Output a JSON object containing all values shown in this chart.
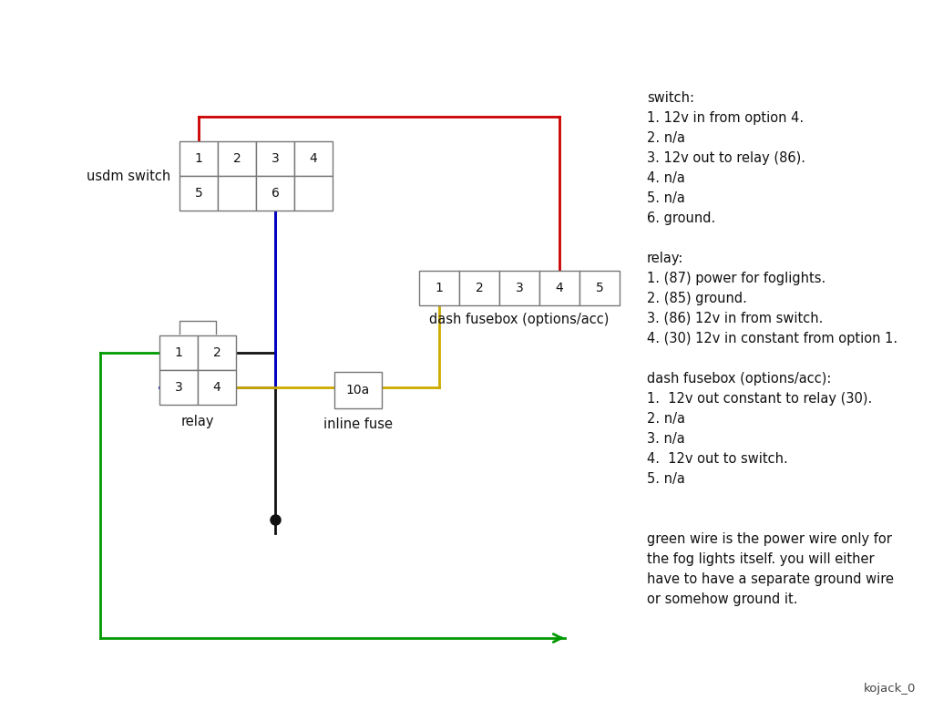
{
  "bg_color": "#ffffff",
  "fig_width": 10.24,
  "fig_height": 7.91,
  "notes": [
    "switch:",
    "1. 12v in from option 4.",
    "2. n/a",
    "3. 12v out to relay (86).",
    "4. n/a",
    "5. n/a",
    "6. ground.",
    "",
    "relay:",
    "1. (87) power for foglights.",
    "2. (85) ground.",
    "3. (86) 12v in from switch.",
    "4. (30) 12v in constant from option 1.",
    "",
    "dash fusebox (options/acc):",
    "1.  12v out constant to relay (30).",
    "2. n/a",
    "3. n/a",
    "4.  12v out to switch.",
    "5. n/a",
    "",
    "",
    "green wire is the power wire only for",
    "the fog lights itself. you will either",
    "have to have a separate ground wire",
    "or somehow ground it."
  ],
  "footer": "kojack_0",
  "wire_red": "#cc0000",
  "wire_blue": "#0000cc",
  "wire_black": "#111111",
  "wire_yellow": "#ccaa00",
  "wire_green": "#009900"
}
